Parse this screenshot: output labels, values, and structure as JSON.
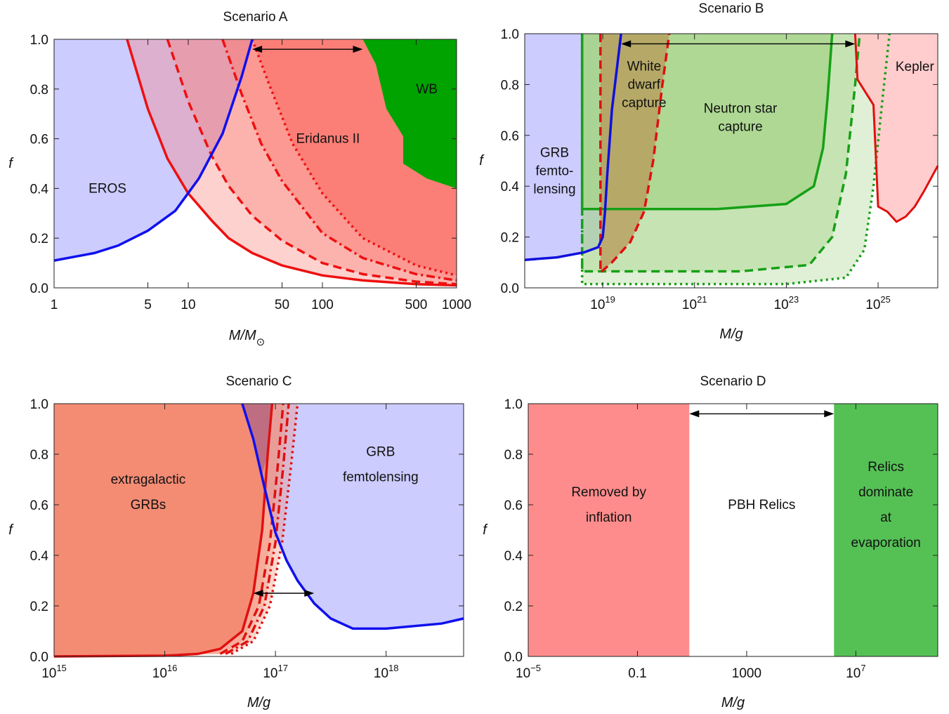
{
  "chart_data": [
    {
      "type": "area",
      "title": "Scenario A",
      "xlabel": "M/M⊙",
      "ylabel": "f",
      "xscale": "log",
      "xlim": [
        1,
        1000
      ],
      "ylim": [
        0,
        1
      ],
      "xticks": [
        "1",
        "5",
        "10",
        "50",
        "100",
        "500",
        "1000"
      ],
      "yticks": [
        "0.0",
        "0.2",
        "0.4",
        "0.6",
        "0.8",
        "1.0"
      ],
      "colors": {
        "eros": "#ccccff",
        "eridanus": "#fa7a72",
        "wb": "#00a300",
        "constraint": "#ee1010",
        "eros_line": "#1010ee"
      },
      "labels": {
        "eros": "EROS",
        "eridanus": "Eridanus II",
        "wb": "WB"
      },
      "series": [
        {
          "name": "EROS",
          "x": [
            1,
            2,
            3,
            5,
            8,
            12,
            18,
            25,
            30
          ],
          "y": [
            0.11,
            0.14,
            0.17,
            0.23,
            0.31,
            0.44,
            0.62,
            0.85,
            1.0
          ]
        },
        {
          "name": "Eridanus II",
          "style": "solid",
          "x": [
            3.5,
            5,
            7,
            10,
            15,
            20,
            30,
            50,
            100,
            200,
            500,
            1000
          ],
          "y": [
            1.0,
            0.72,
            0.52,
            0.38,
            0.27,
            0.2,
            0.14,
            0.09,
            0.05,
            0.03,
            0.015,
            0.01
          ]
        },
        {
          "name": "Eridanus II",
          "style": "dashed",
          "x": [
            7,
            10,
            15,
            20,
            30,
            50,
            100,
            200,
            500,
            1000
          ],
          "y": [
            1.0,
            0.75,
            0.53,
            0.41,
            0.29,
            0.19,
            0.1,
            0.055,
            0.025,
            0.015
          ]
        },
        {
          "name": "Eridanus II",
          "style": "dashdot",
          "x": [
            18,
            25,
            35,
            50,
            100,
            200,
            500,
            1000
          ],
          "y": [
            1.0,
            0.78,
            0.58,
            0.43,
            0.22,
            0.12,
            0.055,
            0.03
          ]
        },
        {
          "name": "Eridanus II",
          "style": "dotted",
          "x": [
            30,
            40,
            60,
            100,
            200,
            500,
            1000
          ],
          "y": [
            1.0,
            0.82,
            0.58,
            0.38,
            0.2,
            0.09,
            0.05
          ]
        },
        {
          "name": "WB",
          "x": [
            200,
            250,
            300,
            400,
            400,
            600,
            1000
          ],
          "y": [
            1.0,
            0.9,
            0.72,
            0.61,
            0.5,
            0.44,
            0.4
          ]
        }
      ],
      "arrow": {
        "x": [
          30,
          200
        ],
        "y": 0.96
      }
    },
    {
      "type": "area",
      "title": "Scenario B",
      "xlabel": "M/g",
      "ylabel": "f",
      "xscale": "log",
      "xlim": [
        17.3,
        26.3
      ],
      "ylim": [
        0,
        1
      ],
      "xticks": [
        "10",
        "10",
        "10",
        "10"
      ],
      "xtick_exponents": [
        "19",
        "21",
        "23",
        "25"
      ],
      "yticks": [
        "0.0",
        "0.2",
        "0.4",
        "0.6",
        "0.8",
        "1.0"
      ],
      "colors": {
        "grb": "#ccccff",
        "wd": "#b89858",
        "ns": "#a6d489",
        "kepler": "#ffc8c8",
        "green_line": "#16a016",
        "red_line": "#e01010",
        "blue_line": "#1010dd"
      },
      "labels": {
        "grb": "GRB\nfemto-\nlensing",
        "wd": "White\ndwarf\ncapture",
        "ns": "Neutron star\ncapture",
        "kepler": "Kepler"
      },
      "series": [
        {
          "name": "GRB femto-lensing",
          "x": [
            17.3,
            18,
            18.6,
            18.9,
            19.0,
            19.05,
            19.1,
            19.2,
            19.4
          ],
          "y": [
            0.11,
            0.12,
            0.14,
            0.16,
            0.2,
            0.3,
            0.45,
            0.7,
            1.0
          ]
        },
        {
          "name": "White dwarf capture",
          "x": [
            18.95,
            19.2,
            19.6,
            19.9,
            20.1,
            20.3,
            20.45
          ],
          "y": [
            0.06,
            0.1,
            0.18,
            0.3,
            0.5,
            0.8,
            1.0
          ]
        },
        {
          "name": "Neutron star capture",
          "style": "solid",
          "x": [
            18.55,
            21.5,
            23.0,
            23.6,
            23.8,
            23.9,
            24.0
          ],
          "y": [
            0.31,
            0.31,
            0.33,
            0.4,
            0.55,
            0.75,
            1.0
          ]
        },
        {
          "name": "Neutron star capture",
          "style": "dashed",
          "x": [
            18.55,
            22.0,
            23.5,
            24.0,
            24.3,
            24.5,
            24.6
          ],
          "y": [
            0.065,
            0.065,
            0.09,
            0.2,
            0.45,
            0.8,
            1.0
          ]
        },
        {
          "name": "Neutron star capture",
          "style": "dotted",
          "x": [
            18.55,
            23.0,
            24.3,
            24.7,
            24.9,
            25.1,
            25.25
          ],
          "y": [
            0.015,
            0.015,
            0.04,
            0.15,
            0.4,
            0.75,
            1.0
          ]
        },
        {
          "name": "Kepler",
          "x": [
            24.5,
            24.55,
            24.9,
            25.0,
            25.2,
            25.4,
            25.6,
            25.8,
            26.0,
            26.3
          ],
          "y": [
            1.0,
            0.82,
            0.72,
            0.32,
            0.3,
            0.26,
            0.28,
            0.32,
            0.38,
            0.48
          ]
        }
      ],
      "arrow": {
        "x": [
          19.4,
          24.5
        ],
        "y": 0.96
      }
    },
    {
      "type": "area",
      "title": "Scenario C",
      "xlabel": "M/g",
      "ylabel": "f",
      "xscale": "log",
      "xlim": [
        15,
        18.7
      ],
      "ylim": [
        0,
        1
      ],
      "xticks": [
        "10",
        "10",
        "10",
        "10"
      ],
      "xtick_exponents": [
        "15",
        "16",
        "17",
        "18"
      ],
      "yticks": [
        "0.0",
        "0.2",
        "0.4",
        "0.6",
        "0.8",
        "1.0"
      ],
      "colors": {
        "grbs": "#f48c74",
        "femto": "#ccccff",
        "red_line": "#e01010",
        "blue_line": "#1010ee"
      },
      "labels": {
        "grbs": "extragalactic\nGRBs",
        "femto": "GRB\nfemtolensing"
      },
      "series": [
        {
          "name": "GRB femtolensing",
          "x": [
            16.7,
            16.8,
            16.9,
            17.0,
            17.1,
            17.2,
            17.35,
            17.5,
            17.7,
            18.0,
            18.5,
            18.7
          ],
          "y": [
            1.0,
            0.86,
            0.67,
            0.49,
            0.38,
            0.3,
            0.21,
            0.15,
            0.11,
            0.11,
            0.13,
            0.15
          ]
        },
        {
          "name": "extragalactic GRBs",
          "style": "solid",
          "x": [
            15,
            16.0,
            16.3,
            16.5,
            16.7,
            16.8,
            16.88,
            16.93,
            16.97
          ],
          "y": [
            0.0,
            0.003,
            0.01,
            0.03,
            0.1,
            0.25,
            0.5,
            0.8,
            1.0
          ]
        },
        {
          "name": "extragalactic GRBs",
          "style": "dashed",
          "x": [
            16.5,
            16.7,
            16.85,
            16.95,
            17.02,
            17.07
          ],
          "y": [
            0.01,
            0.06,
            0.2,
            0.45,
            0.75,
            1.0
          ]
        },
        {
          "name": "extragalactic GRBs",
          "style": "dashdot",
          "x": [
            16.55,
            16.75,
            16.9,
            17.0,
            17.07,
            17.12
          ],
          "y": [
            0.01,
            0.06,
            0.2,
            0.45,
            0.75,
            1.0
          ]
        },
        {
          "name": "extragalactic GRBs",
          "style": "dotted",
          "x": [
            16.6,
            16.8,
            16.95,
            17.06,
            17.14,
            17.2
          ],
          "y": [
            0.01,
            0.06,
            0.2,
            0.45,
            0.75,
            1.0
          ]
        }
      ],
      "arrow": {
        "x": [
          16.8,
          17.35
        ],
        "y": 0.25
      }
    },
    {
      "type": "area",
      "title": "Scenario D",
      "xlabel": "M/g",
      "ylabel": "f",
      "xscale": "log",
      "xlim": [
        -5,
        10
      ],
      "ylim": [
        0,
        1
      ],
      "xticks": [
        "10",
        "0.1",
        "1000",
        "10"
      ],
      "xtick_exponents": [
        "−5",
        "",
        "",
        "7"
      ],
      "yticks": [
        "0.0",
        "0.2",
        "0.4",
        "0.6",
        "0.8",
        "1.0"
      ],
      "colors": {
        "inflation": "#ff8c8c",
        "relics": "#55c155"
      },
      "labels": {
        "inflation": "Removed by\ninflation",
        "pbh": "PBH Relics",
        "dominate": "Relics\ndominate\nat\nevaporation"
      },
      "bands": [
        {
          "name": "Removed by inflation",
          "x": [
            -5,
            0.9
          ]
        },
        {
          "name": "PBH Relics",
          "x": [
            0.9,
            6.2
          ]
        },
        {
          "name": "Relics dominate at evaporation",
          "x": [
            6.2,
            10
          ]
        }
      ],
      "arrow": {
        "x": [
          0.9,
          6.2
        ],
        "y": 0.96
      }
    }
  ]
}
